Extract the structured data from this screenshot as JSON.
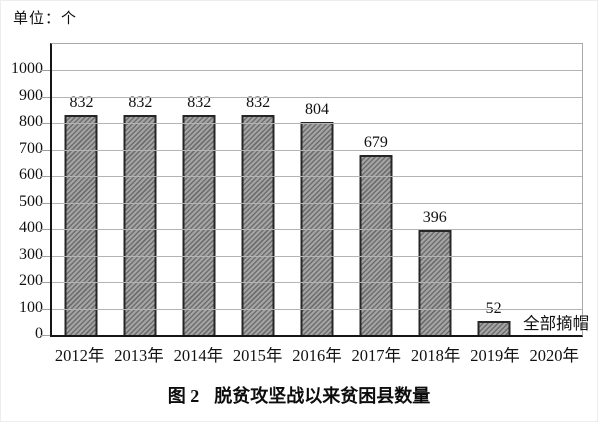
{
  "unit_label": "单位：个",
  "caption": {
    "figure_number": "图 2",
    "title": "脱贫攻坚战以来贫困县数量"
  },
  "chart_data": {
    "type": "bar",
    "title": "图 2 脱贫攻坚战以来贫困县数量",
    "unit": "单位：个",
    "categories": [
      "2012年",
      "2013年",
      "2014年",
      "2015年",
      "2016年",
      "2017年",
      "2018年",
      "2019年",
      "2020年"
    ],
    "values": [
      832,
      832,
      832,
      832,
      804,
      679,
      396,
      52,
      null
    ],
    "data_labels": [
      "832",
      "832",
      "832",
      "832",
      "804",
      "679",
      "396",
      "52",
      null
    ],
    "annotation": {
      "text": "全部摘帽",
      "category": "2020年",
      "category_index": 8
    },
    "xlabel": "",
    "ylabel": "单位：个",
    "ylim": [
      0,
      1100
    ],
    "yticks": [
      0,
      100,
      200,
      300,
      400,
      500,
      600,
      700,
      800,
      900,
      1000
    ],
    "grid": "horizontal",
    "legend": "none",
    "colors": {
      "bar_fill": "#a4a4a4",
      "bar_hatch": "#6e6e6e",
      "bar_border": "#262626",
      "gridline": "#b4b4b4",
      "axis": "#151515",
      "tick": "#9e9e9e",
      "text": "#111111",
      "background": "#ffffff"
    }
  }
}
